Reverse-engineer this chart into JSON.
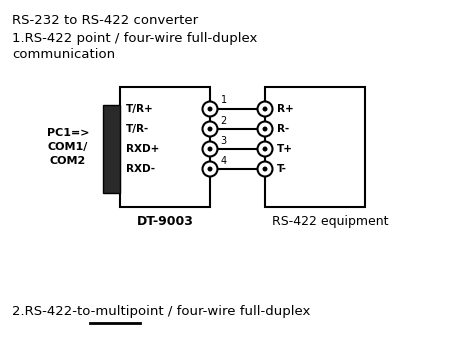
{
  "title": "RS-232 to RS-422 converter",
  "subtitle1": "1.RS-422 point / four-wire full-duplex",
  "subtitle2": "communication",
  "subtitle3": "2.RS-422-to-multipoint / four-wire full-duplex",
  "pc_label": "PC1=>\nCOM1/\nCOM2",
  "dt_label": "DT-9003",
  "eq_label": "RS-422 equipment",
  "left_pins": [
    "T/R+",
    "T/R-",
    "RXD+",
    "RXD-"
  ],
  "right_pins": [
    "R+",
    "R-",
    "T+",
    "T-"
  ],
  "pin_numbers": [
    "1",
    "2",
    "3",
    "4"
  ],
  "bg_color": "#ffffff",
  "box_color": "#ffffff",
  "line_color": "#000000"
}
